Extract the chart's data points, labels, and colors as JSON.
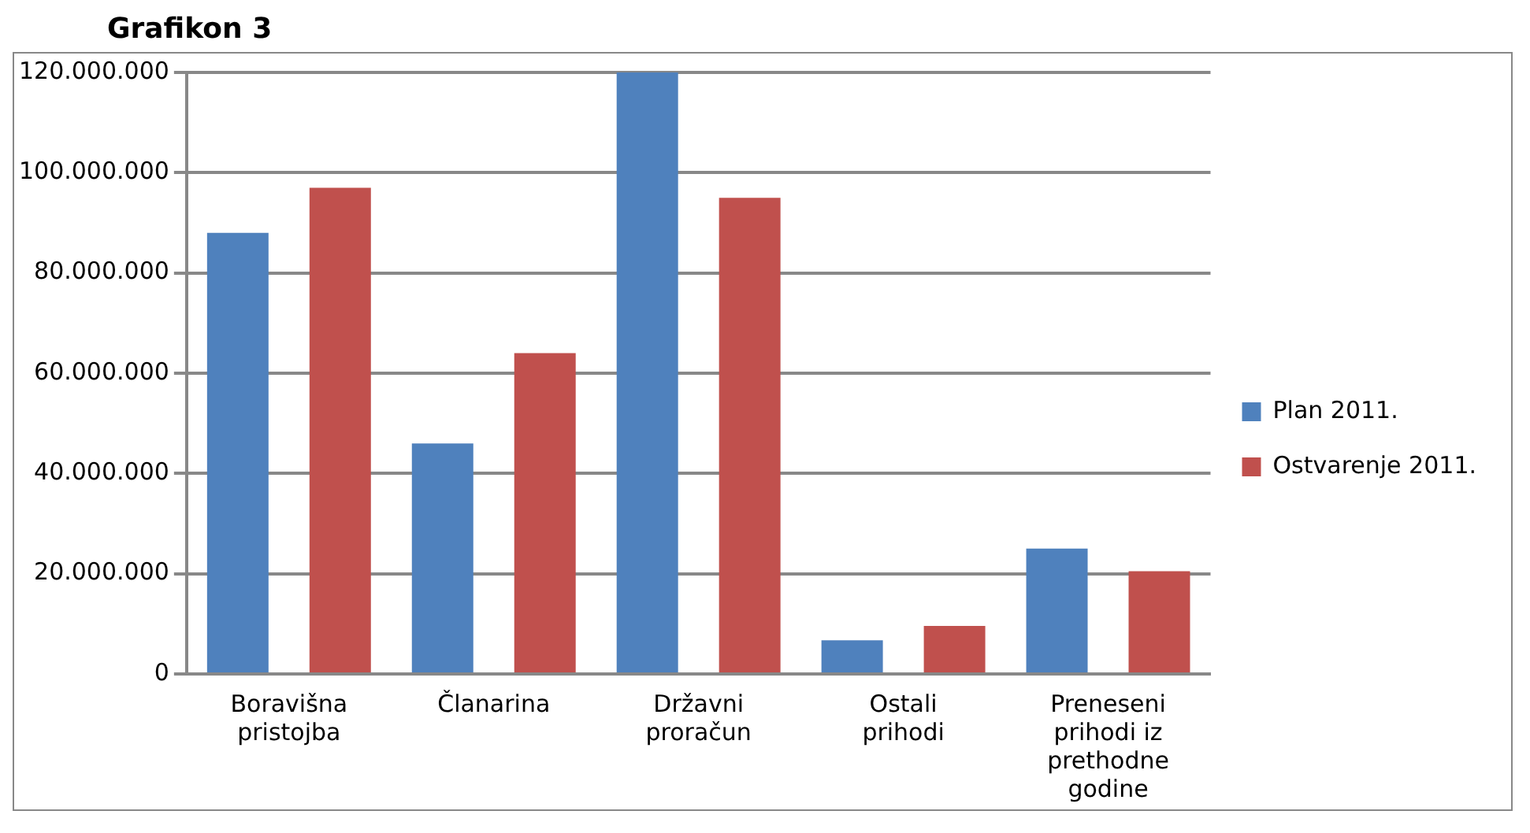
{
  "chart_data": {
    "type": "bar",
    "title": "Grafikon 3",
    "categories": [
      "Boravišna pristojba",
      "Članarina",
      "Državni proračun",
      "Ostali prihodi",
      "Preneseni prihodi iz prethodne godine"
    ],
    "series": [
      {
        "name": "Plan 2011.",
        "color": "#4f81bd",
        "values": [
          88000000,
          46000000,
          120000000,
          6700000,
          25000000
        ]
      },
      {
        "name": "Ostvarenje 2011.",
        "color": "#c0504d",
        "values": [
          97000000,
          64000000,
          95000000,
          9600000,
          20500000
        ]
      }
    ],
    "ylim": [
      0,
      120000000
    ],
    "yticks": [
      {
        "value": 0,
        "label": "0"
      },
      {
        "value": 20000000,
        "label": "20.000.000"
      },
      {
        "value": 40000000,
        "label": "40.000.000"
      },
      {
        "value": 60000000,
        "label": "60.000.000"
      },
      {
        "value": 80000000,
        "label": "80.000.000"
      },
      {
        "value": 100000000,
        "label": "100.000.000"
      },
      {
        "value": 120000000,
        "label": "120.000.000"
      }
    ],
    "grid": "y",
    "legend": "right"
  }
}
